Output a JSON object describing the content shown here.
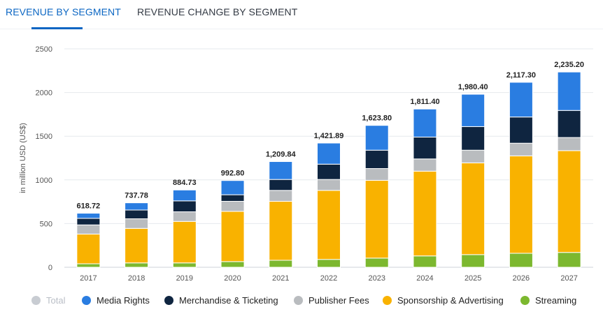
{
  "tabs": [
    {
      "label": "REVENUE BY SEGMENT",
      "active": true
    },
    {
      "label": "REVENUE CHANGE BY SEGMENT",
      "active": false
    }
  ],
  "chart_data": {
    "type": "bar",
    "stacked": true,
    "categories": [
      "2017",
      "2018",
      "2019",
      "2020",
      "2021",
      "2022",
      "2023",
      "2024",
      "2025",
      "2026",
      "2027"
    ],
    "ylabel": "in million USD (US$)",
    "ylim": [
      0,
      2500
    ],
    "yticks": [
      0,
      500,
      1000,
      1500,
      2000,
      2500
    ],
    "grid": true,
    "legend_position": "bottom",
    "totals": [
      618.72,
      737.78,
      884.73,
      992.8,
      1209.84,
      1421.89,
      1623.8,
      1811.4,
      1980.4,
      2117.3,
      2235.2
    ],
    "total_labels": [
      "618.72",
      "737.78",
      "884.73",
      "992.80",
      "1,209.84",
      "1,421.89",
      "1,623.80",
      "1,811.40",
      "1,980.40",
      "2,117.30",
      "2,235.20"
    ],
    "series": [
      {
        "name": "Streaming",
        "color": "#7cb82f",
        "values": [
          40,
          50,
          50,
          65,
          80,
          90,
          105,
          130,
          145,
          160,
          170
        ]
      },
      {
        "name": "Sponsorship & Advertising",
        "color": "#f9b200",
        "values": [
          340,
          395,
          475,
          575,
          675,
          790,
          890,
          970,
          1050,
          1115,
          1165
        ]
      },
      {
        "name": "Publisher Fees",
        "color": "#b9bcbf",
        "values": [
          105,
          110,
          110,
          115,
          125,
          125,
          135,
          140,
          145,
          145,
          150
        ]
      },
      {
        "name": "Merchandise & Ticketing",
        "color": "#0f2540",
        "values": [
          75,
          100,
          125,
          75,
          125,
          175,
          210,
          250,
          270,
          300,
          310
        ]
      },
      {
        "name": "Media Rights",
        "color": "#2a7de1",
        "values": [
          58.72,
          82.78,
          124.73,
          162.8,
          204.84,
          241.89,
          283.8,
          321.4,
          370.4,
          397.3,
          440.2
        ]
      }
    ]
  },
  "legend": [
    {
      "label": "Total",
      "color": "#c8ccd2",
      "dim": true
    },
    {
      "label": "Media Rights",
      "color": "#2a7de1",
      "dim": false
    },
    {
      "label": "Merchandise & Ticketing",
      "color": "#0f2540",
      "dim": false
    },
    {
      "label": "Publisher Fees",
      "color": "#b9bcbf",
      "dim": false
    },
    {
      "label": "Sponsorship & Advertising",
      "color": "#f9b200",
      "dim": false
    },
    {
      "label": "Streaming",
      "color": "#7cb82f",
      "dim": false
    }
  ]
}
